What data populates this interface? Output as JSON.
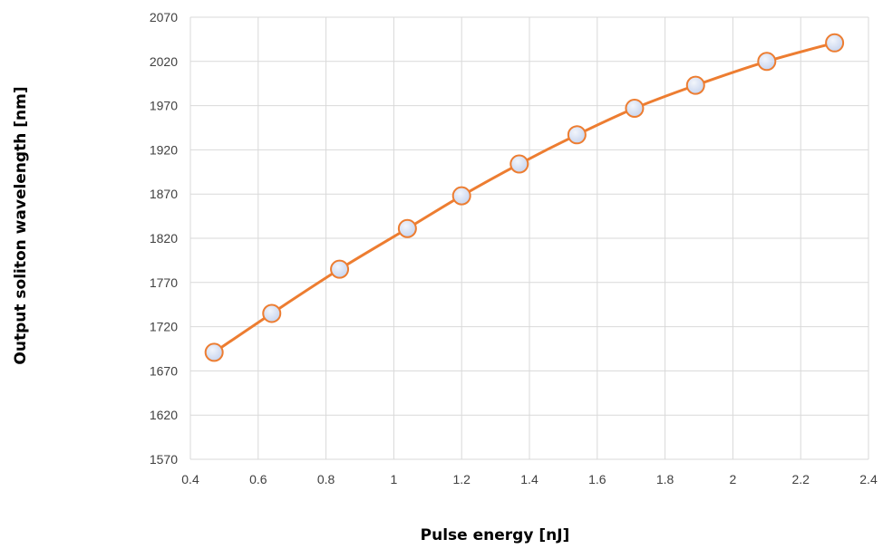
{
  "chart_data": {
    "type": "line",
    "title": "",
    "xlabel": "Pulse energy [nJ]",
    "ylabel": "Output soliton wavelength [nm]",
    "xlim": [
      0.4,
      2.4
    ],
    "ylim": [
      1570,
      2070
    ],
    "xticks": [
      0.4,
      0.6,
      0.8,
      1,
      1.2,
      1.4,
      1.6,
      1.8,
      2,
      2.2,
      2.4
    ],
    "xtick_labels": [
      "0.4",
      "0.6",
      "0.8",
      "1",
      "1.2",
      "1.4",
      "1.6",
      "1.8",
      "2",
      "2.2",
      "2.4"
    ],
    "yticks": [
      1570,
      1620,
      1670,
      1720,
      1770,
      1820,
      1870,
      1920,
      1970,
      2020,
      2070
    ],
    "ytick_labels": [
      "1570",
      "1620",
      "1670",
      "1720",
      "1770",
      "1820",
      "1870",
      "1920",
      "1970",
      "2020",
      "2070"
    ],
    "grid": true,
    "line_color": "#ed7d31",
    "marker_fill": "#c5d3ee",
    "marker_edge": "#ed7d31",
    "series": [
      {
        "x": [
          0.47,
          0.64,
          0.84,
          1.04,
          1.2,
          1.37,
          1.54,
          1.71,
          1.89,
          2.1,
          2.3
        ],
        "y": [
          1691,
          1735,
          1785,
          1831,
          1868,
          1904,
          1937,
          1967,
          1993,
          2020,
          2041
        ]
      }
    ]
  }
}
